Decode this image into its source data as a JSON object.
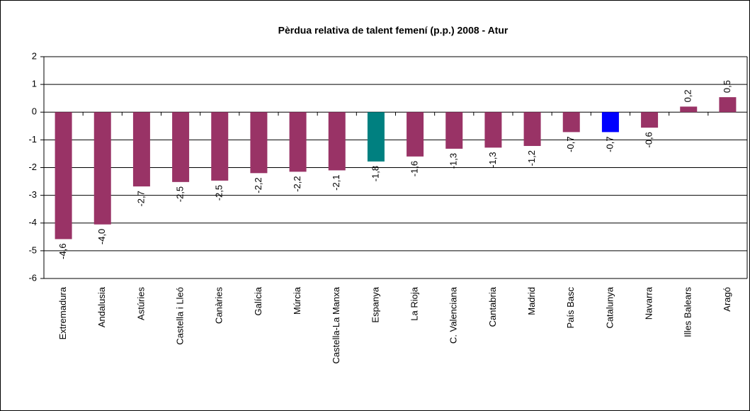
{
  "chart_data": {
    "type": "bar",
    "title": "Pèrdua relativa de talent femení (p.p.) 2008 - Atur",
    "categories": [
      "Extremadura",
      "Andalusia",
      "Astúries",
      "Castella i Lleó",
      "Canàries",
      "Galícia",
      "Múrcia",
      "Castella-La Manxa",
      "Espanya",
      "La Rioja",
      "C. Valenciana",
      "Cantabria",
      "Madrid",
      "País Basc",
      "Catalunya",
      "Navarra",
      "Illes Balears",
      "Aragó"
    ],
    "values": [
      -4.58,
      -4.05,
      -2.68,
      -2.52,
      -2.47,
      -2.2,
      -2.15,
      -2.1,
      -1.78,
      -1.6,
      -1.32,
      -1.28,
      -1.22,
      -0.72,
      -0.72,
      -0.56,
      0.2,
      0.54
    ],
    "value_labels": [
      "-4,6",
      "-4,0",
      "-2,7",
      "-2,5",
      "-2,5",
      "-2,2",
      "-2,2",
      "-2,1",
      "-1,8",
      "-1,6",
      "-1,3",
      "-1,3",
      "-1,2",
      "-0,7",
      "-0,7",
      "-0,6",
      "0,2",
      "0,5"
    ],
    "colors": [
      "#993366",
      "#993366",
      "#993366",
      "#993366",
      "#993366",
      "#993366",
      "#993366",
      "#993366",
      "#008080",
      "#993366",
      "#993366",
      "#993366",
      "#993366",
      "#993366",
      "#0000ff",
      "#993366",
      "#993366",
      "#993366"
    ],
    "ylim": [
      -6,
      2
    ],
    "yticks": [
      -6,
      -5,
      -4,
      -3,
      -2,
      -1,
      0,
      1,
      2
    ],
    "grid": true
  }
}
